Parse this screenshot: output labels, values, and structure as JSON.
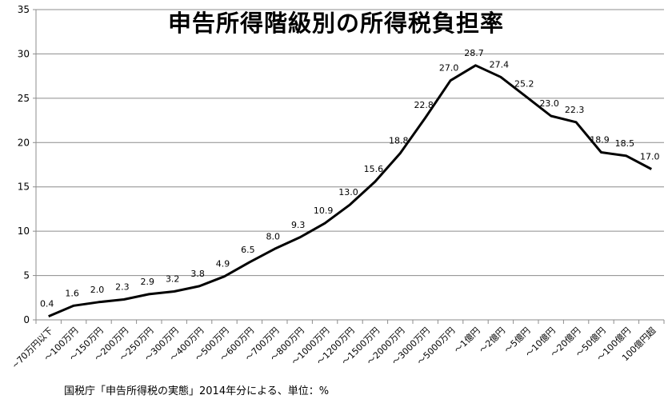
{
  "chart_data": {
    "type": "line",
    "title": "申告所得階級別の所得税負担率",
    "caption": "国税庁「申告所得税の実態」2014年分による、単位：%",
    "xlabel": "",
    "ylabel": "",
    "ylim": [
      0,
      35
    ],
    "yticks": [
      0,
      5,
      10,
      15,
      20,
      25,
      30,
      35
    ],
    "ytick_labels": [
      "0",
      "5",
      "10",
      "15",
      "20",
      "25",
      "30",
      "35"
    ],
    "grid": "horizontal",
    "legend": "none",
    "line_color": "#000000",
    "categories": [
      "~70万円以下",
      "～100万円",
      "～150万円",
      "～200万円",
      "～250万円",
      "～300万円",
      "～400万円",
      "～500万円",
      "～600万円",
      "～700万円",
      "～800万円",
      "～1000万円",
      "～1200万円",
      "～1500万円",
      "～2000万円",
      "～3000万円",
      "～5000万円",
      "～1億円",
      "～2億円",
      "～5億円",
      "～10億円",
      "～20億円",
      "～50億円",
      "～100億円",
      "100億円超"
    ],
    "values": [
      0.4,
      1.6,
      2.0,
      2.3,
      2.9,
      3.2,
      3.8,
      4.9,
      6.5,
      8.0,
      9.3,
      10.9,
      13.0,
      15.6,
      18.8,
      22.8,
      27.0,
      28.7,
      27.4,
      25.2,
      23.0,
      22.3,
      18.9,
      18.5,
      17.0
    ],
    "value_labels": [
      "0.4",
      "1.6",
      "2.0",
      "2.3",
      "2.9",
      "3.2",
      "3.8",
      "4.9",
      "6.5",
      "8.0",
      "9.3",
      "10.9",
      "13.0",
      "15.6",
      "18.8",
      "22.8",
      "27.0",
      "28.7",
      "27.4",
      "25.2",
      "23.0",
      "22.3",
      "18.9",
      "18.5",
      "17.0"
    ]
  }
}
